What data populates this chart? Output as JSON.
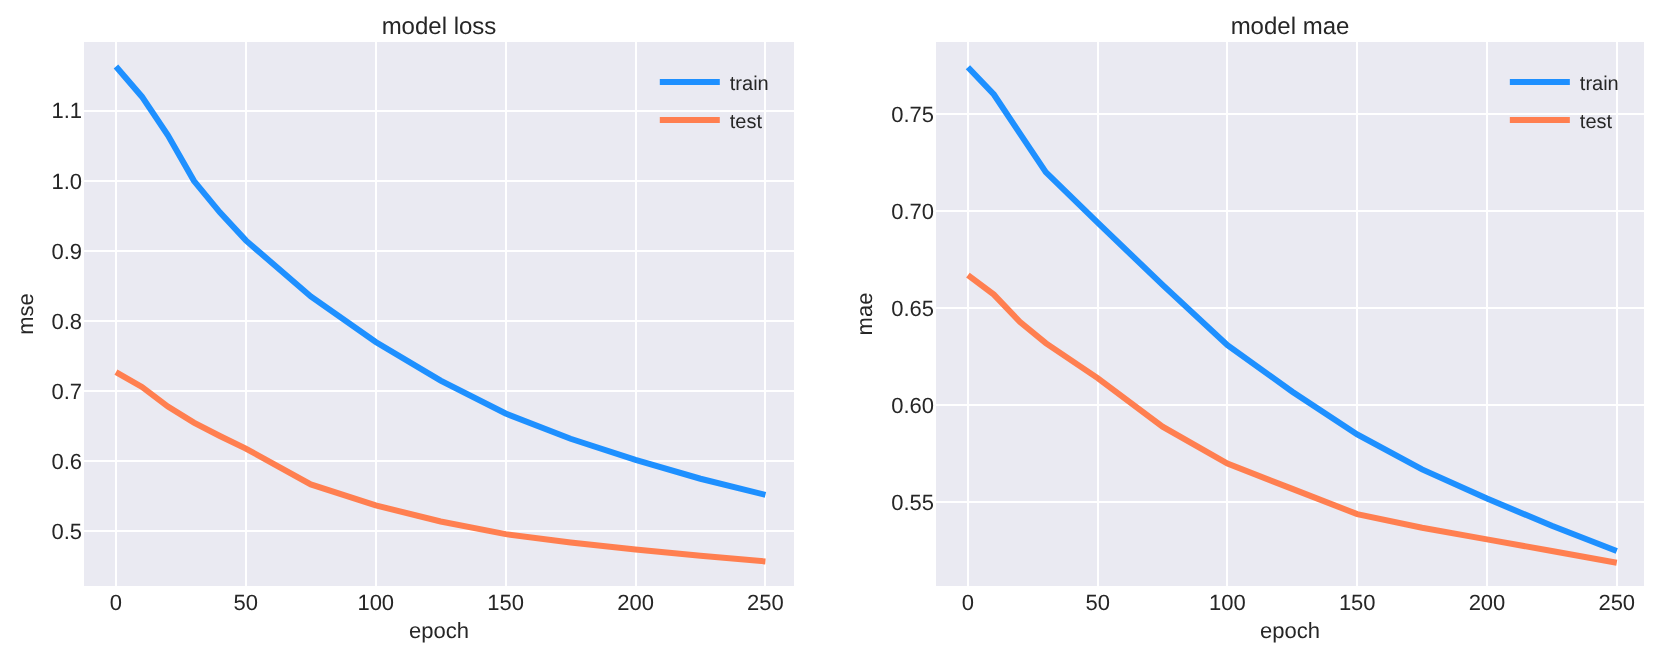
{
  "chart_data": [
    {
      "type": "line",
      "title": "model loss",
      "xlabel": "epoch",
      "ylabel": "mse",
      "xlim": [
        -12.3,
        261
      ],
      "ylim": [
        0.422,
        1.198
      ],
      "xticks": [
        0,
        50,
        100,
        150,
        200,
        250
      ],
      "yticks": [
        {
          "value": 0.5,
          "label": "0.5"
        },
        {
          "value": 0.6,
          "label": "0.6"
        },
        {
          "value": 0.7,
          "label": "0.7"
        },
        {
          "value": 0.8,
          "label": "0.8"
        },
        {
          "value": 0.9,
          "label": "0.9"
        },
        {
          "value": 1.0,
          "label": "1.0"
        },
        {
          "value": 1.1,
          "label": "1.1"
        }
      ],
      "grid": true,
      "legend": "top right",
      "line_style": "solid",
      "marker": "none",
      "x": [
        0,
        10,
        20,
        30,
        40,
        50,
        75,
        100,
        125,
        150,
        175,
        200,
        225,
        250
      ],
      "series": [
        {
          "name": "train",
          "color": "#1e90ff",
          "values": [
            1.163,
            1.12,
            1.065,
            1.0,
            0.955,
            0.915,
            0.835,
            0.77,
            0.715,
            0.668,
            0.632,
            0.602,
            0.575,
            0.552
          ]
        },
        {
          "name": "test",
          "color": "#ff7f50",
          "values": [
            0.727,
            0.706,
            0.678,
            0.655,
            0.636,
            0.618,
            0.567,
            0.537,
            0.514,
            0.496,
            0.484,
            0.474,
            0.465,
            0.457
          ]
        }
      ]
    },
    {
      "type": "line",
      "title": "model mae",
      "xlabel": "epoch",
      "ylabel": "mae",
      "xlim": [
        -12.3,
        260.5
      ],
      "ylim": [
        0.507,
        0.787
      ],
      "xticks": [
        0,
        50,
        100,
        150,
        200,
        250
      ],
      "yticks": [
        {
          "value": 0.55,
          "label": "0.55"
        },
        {
          "value": 0.6,
          "label": "0.60"
        },
        {
          "value": 0.65,
          "label": "0.65"
        },
        {
          "value": 0.7,
          "label": "0.70"
        },
        {
          "value": 0.75,
          "label": "0.75"
        }
      ],
      "grid": true,
      "legend": "top right",
      "line_style": "solid",
      "marker": "none",
      "x": [
        0,
        10,
        20,
        30,
        50,
        75,
        100,
        125,
        150,
        175,
        200,
        225,
        250
      ],
      "series": [
        {
          "name": "train",
          "color": "#1e90ff",
          "values": [
            0.774,
            0.76,
            0.74,
            0.72,
            0.694,
            0.662,
            0.631,
            0.607,
            0.585,
            0.567,
            0.552,
            0.538,
            0.525
          ]
        },
        {
          "name": "test",
          "color": "#ff7f50",
          "values": [
            0.667,
            0.657,
            0.643,
            0.632,
            0.614,
            0.589,
            0.57,
            0.557,
            0.544,
            0.537,
            0.531,
            0.525,
            0.519
          ]
        }
      ]
    }
  ]
}
